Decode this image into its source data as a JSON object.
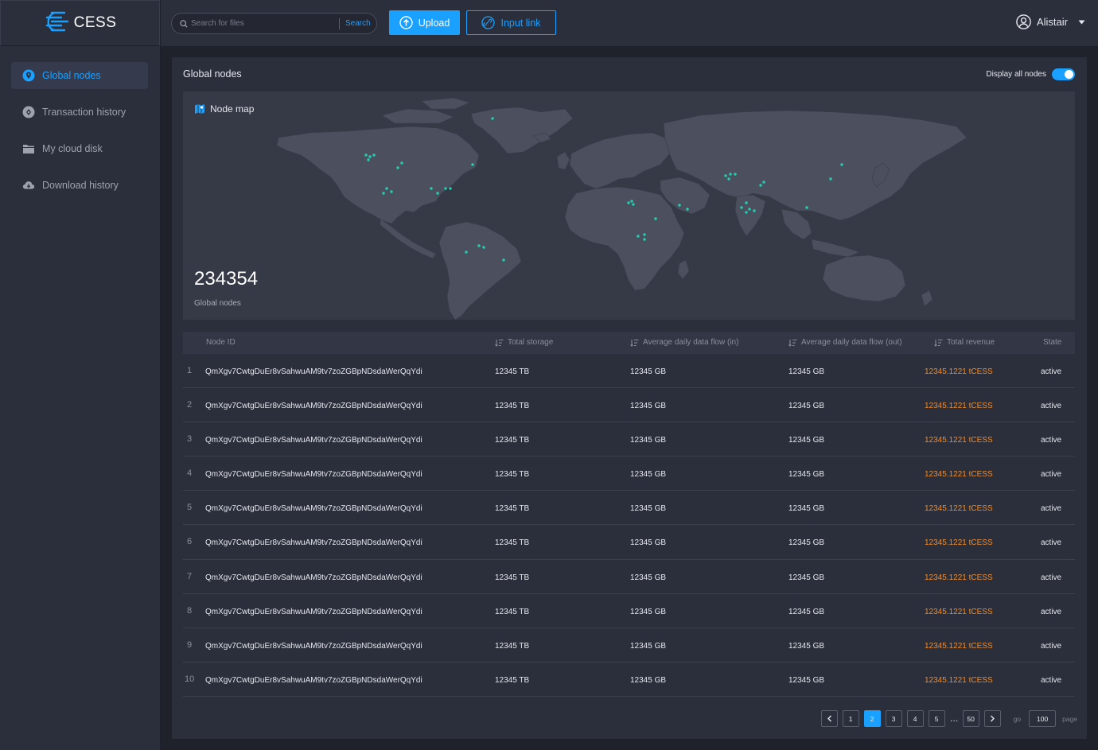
{
  "brand": {
    "name": "CESS"
  },
  "sidebar": {
    "items": [
      {
        "label": "Global nodes",
        "icon": "location-pin-icon",
        "active": true
      },
      {
        "label": "Transaction history",
        "icon": "compass-icon",
        "active": false
      },
      {
        "label": "My cloud disk",
        "icon": "folder-icon",
        "active": false
      },
      {
        "label": "Download history",
        "icon": "cloud-download-icon",
        "active": false
      }
    ]
  },
  "header": {
    "search_placeholder": "Search for files",
    "search_button": "Search",
    "upload_label": "Upload",
    "input_link_label": "Input link",
    "user_name": "Alistair"
  },
  "panel": {
    "title": "Global nodes",
    "toggle_label": "Display all nodes",
    "toggle_on": true
  },
  "map": {
    "label": "Node map",
    "count": "234354",
    "count_label": "Global nodes"
  },
  "table": {
    "columns": {
      "node_id": "Node ID",
      "total_storage": "Total storage",
      "flow_in": "Average daily data flow (in)",
      "flow_out": "Average daily data flow (out)",
      "total_revenue": "Total revenue",
      "state": "State"
    },
    "rows": [
      {
        "index": "1",
        "node_id": "QmXgv7CwtgDuEr8vSahwuAM9tv7zoZGBpNDsdaWerQqYdi",
        "storage": "12345 TB",
        "flow_in": "12345 GB",
        "flow_out": "12345 GB",
        "revenue": "12345.1221 tCESS",
        "state": "active"
      },
      {
        "index": "2",
        "node_id": "QmXgv7CwtgDuEr8vSahwuAM9tv7zoZGBpNDsdaWerQqYdi",
        "storage": "12345 TB",
        "flow_in": "12345 GB",
        "flow_out": "12345 GB",
        "revenue": "12345.1221 tCESS",
        "state": "active"
      },
      {
        "index": "3",
        "node_id": "QmXgv7CwtgDuEr8vSahwuAM9tv7zoZGBpNDsdaWerQqYdi",
        "storage": "12345 TB",
        "flow_in": "12345 GB",
        "flow_out": "12345 GB",
        "revenue": "12345.1221 tCESS",
        "state": "active"
      },
      {
        "index": "4",
        "node_id": "QmXgv7CwtgDuEr8vSahwuAM9tv7zoZGBpNDsdaWerQqYdi",
        "storage": "12345 TB",
        "flow_in": "12345 GB",
        "flow_out": "12345 GB",
        "revenue": "12345.1221 tCESS",
        "state": "active"
      },
      {
        "index": "5",
        "node_id": "QmXgv7CwtgDuEr8vSahwuAM9tv7zoZGBpNDsdaWerQqYdi",
        "storage": "12345 TB",
        "flow_in": "12345 GB",
        "flow_out": "12345 GB",
        "revenue": "12345.1221 tCESS",
        "state": "active"
      },
      {
        "index": "6",
        "node_id": "QmXgv7CwtgDuEr8vSahwuAM9tv7zoZGBpNDsdaWerQqYdi",
        "storage": "12345 TB",
        "flow_in": "12345 GB",
        "flow_out": "12345 GB",
        "revenue": "12345.1221 tCESS",
        "state": "active"
      },
      {
        "index": "7",
        "node_id": "QmXgv7CwtgDuEr8vSahwuAM9tv7zoZGBpNDsdaWerQqYdi",
        "storage": "12345 TB",
        "flow_in": "12345 GB",
        "flow_out": "12345 GB",
        "revenue": "12345.1221 tCESS",
        "state": "active"
      },
      {
        "index": "8",
        "node_id": "QmXgv7CwtgDuEr8vSahwuAM9tv7zoZGBpNDsdaWerQqYdi",
        "storage": "12345 TB",
        "flow_in": "12345 GB",
        "flow_out": "12345 GB",
        "revenue": "12345.1221 tCESS",
        "state": "active"
      },
      {
        "index": "9",
        "node_id": "QmXgv7CwtgDuEr8vSahwuAM9tv7zoZGBpNDsdaWerQqYdi",
        "storage": "12345 TB",
        "flow_in": "12345 GB",
        "flow_out": "12345 GB",
        "revenue": "12345.1221 tCESS",
        "state": "active"
      },
      {
        "index": "10",
        "node_id": "QmXgv7CwtgDuEr8vSahwuAM9tv7zoZGBpNDsdaWerQqYdi",
        "storage": "12345 TB",
        "flow_in": "12345 GB",
        "flow_out": "12345 GB",
        "revenue": "12345.1221 tCESS",
        "state": "active"
      }
    ]
  },
  "pagination": {
    "pages": [
      "1",
      "2",
      "3",
      "4",
      "5"
    ],
    "current": "2",
    "ellipsis": "…",
    "last": "50",
    "go_label": "go",
    "go_value": "100",
    "page_label": "page"
  },
  "colors": {
    "accent": "#1aa0ff",
    "revenue": "#ee8c2c",
    "node_dot": "#1fd1b0",
    "background": "#20222b",
    "panel": "#2b2e3b"
  }
}
